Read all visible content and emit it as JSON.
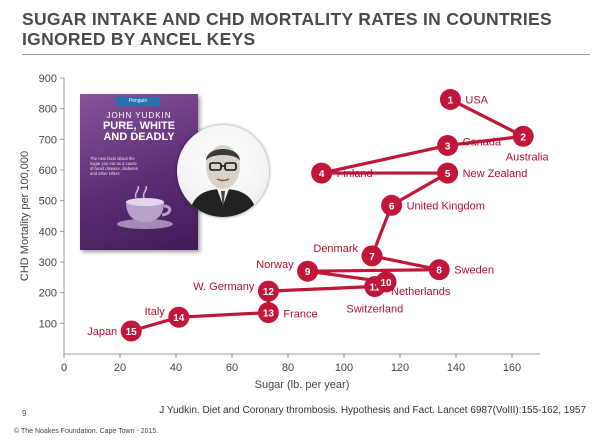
{
  "slide": {
    "title": "SUGAR INTAKE AND CHD MORTALITY RATES IN COUNTRIES IGNORED BY ANCEL KEYS",
    "citation": "J Yudkin. Diet and Coronary thrombosis. Hypothesis and Fact. Lancet  6987(VolII):155-162, 1957",
    "slide_number": "9",
    "footer": "© The Noakes Foundation. Cape Town - 2015."
  },
  "book": {
    "badge": "Penguin",
    "author": "JOHN YUDKIN",
    "title_line1": "PURE, WHITE",
    "title_line2": "AND DEADLY",
    "blurb": "The new facts about the sugar you eat as a cause of heart disease, diabetes and other killers"
  },
  "colors": {
    "marker": "#c0163a",
    "marker_text": "#ffffff",
    "label": "#b01030",
    "axis_text": "#444444",
    "grid": "#cccccc"
  },
  "chart_data": {
    "type": "scatter",
    "title": "",
    "xlabel": "Sugar (lb. per year)",
    "ylabel": "CHD Mortality per 100,000",
    "xlim": [
      0,
      170
    ],
    "ylim": [
      0,
      900
    ],
    "xticks": [
      0,
      20,
      40,
      60,
      80,
      100,
      120,
      140,
      160
    ],
    "yticks": [
      100,
      200,
      300,
      400,
      500,
      600,
      700,
      800,
      900
    ],
    "grid": false,
    "points": [
      {
        "rank": "15",
        "country": "Japan",
        "x": 24,
        "y": 75
      },
      {
        "rank": "14",
        "country": "Italy",
        "x": 41,
        "y": 120
      },
      {
        "rank": "13",
        "country": "France",
        "x": 73,
        "y": 135
      },
      {
        "rank": "12",
        "country": "W. Germany",
        "x": 73,
        "y": 205
      },
      {
        "rank": "11",
        "country": "Switzerland",
        "x": 111,
        "y": 220
      },
      {
        "rank": "10",
        "country": "Netherlands",
        "x": 115,
        "y": 235
      },
      {
        "rank": "9",
        "country": "Norway",
        "x": 87,
        "y": 270
      },
      {
        "rank": "8",
        "country": "Sweden",
        "x": 134,
        "y": 275
      },
      {
        "rank": "7",
        "country": "Denmark",
        "x": 110,
        "y": 320
      },
      {
        "rank": "6",
        "country": "United Kingdom",
        "x": 117,
        "y": 485
      },
      {
        "rank": "5",
        "country": "New Zealand",
        "x": 137,
        "y": 590
      },
      {
        "rank": "4",
        "country": "Finland",
        "x": 92,
        "y": 590
      },
      {
        "rank": "3",
        "country": "Canada",
        "x": 137,
        "y": 680
      },
      {
        "rank": "2",
        "country": "Australia",
        "x": 164,
        "y": 710
      },
      {
        "rank": "1",
        "country": "USA",
        "x": 138,
        "y": 830
      }
    ],
    "connecting_line": true
  }
}
